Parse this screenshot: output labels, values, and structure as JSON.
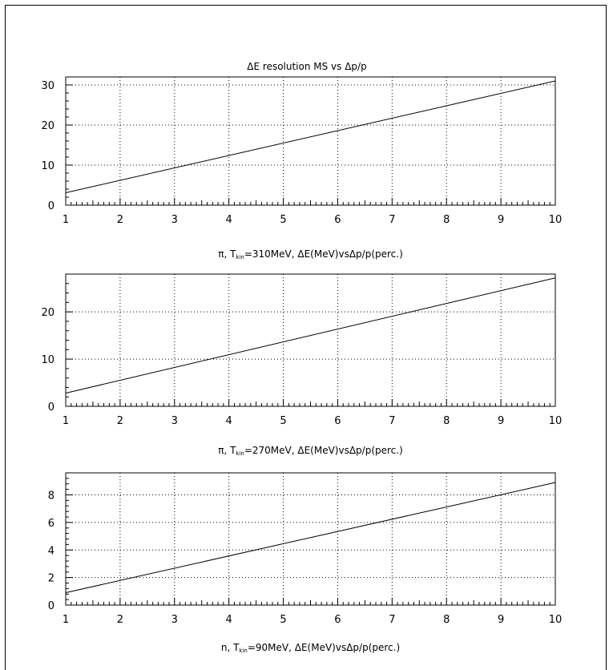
{
  "figure": {
    "title": "ΔE resolution MS vs Δp/p"
  },
  "chart_data": [
    {
      "type": "line",
      "title": "ΔE resolution MS vs Δp/p",
      "xlabel_parts": [
        {
          "t": "π, T",
          "sub": false
        },
        {
          "t": "kin",
          "sub": true
        },
        {
          "t": "=310MeV, ΔE(MeV)vsΔp/p(perc.)",
          "sub": false
        }
      ],
      "ylabel": "",
      "xlim": [
        1,
        10
      ],
      "ylim": [
        0,
        32
      ],
      "xticks": [
        1,
        2,
        3,
        4,
        5,
        6,
        7,
        8,
        9,
        10
      ],
      "yticks": [
        0,
        10,
        20,
        30
      ],
      "grid": true,
      "series": [
        {
          "x": [
            1,
            10
          ],
          "y": [
            3.1,
            31.0
          ]
        }
      ]
    },
    {
      "type": "line",
      "title": "",
      "xlabel_parts": [
        {
          "t": "π, T",
          "sub": false
        },
        {
          "t": "kin",
          "sub": true
        },
        {
          "t": "=270MeV, ΔE(MeV)vsΔp/p(perc.)",
          "sub": false
        }
      ],
      "ylabel": "",
      "xlim": [
        1,
        10
      ],
      "ylim": [
        0,
        28
      ],
      "xticks": [
        1,
        2,
        3,
        4,
        5,
        6,
        7,
        8,
        9,
        10
      ],
      "yticks": [
        0,
        10,
        20
      ],
      "grid": true,
      "series": [
        {
          "x": [
            1,
            10
          ],
          "y": [
            2.8,
            27.2
          ]
        }
      ]
    },
    {
      "type": "line",
      "title": "",
      "xlabel_parts": [
        {
          "t": "n, T",
          "sub": false
        },
        {
          "t": "kin",
          "sub": true
        },
        {
          "t": "=90MeV, ΔE(MeV)vsΔp/p(perc.)",
          "sub": false
        }
      ],
      "ylabel": "",
      "xlim": [
        1,
        10
      ],
      "ylim": [
        0,
        9.6
      ],
      "xticks": [
        1,
        2,
        3,
        4,
        5,
        6,
        7,
        8,
        9,
        10
      ],
      "yticks": [
        0,
        2,
        4,
        6,
        8
      ],
      "grid": true,
      "series": [
        {
          "x": [
            1,
            10
          ],
          "y": [
            0.9,
            8.9
          ]
        }
      ]
    }
  ]
}
